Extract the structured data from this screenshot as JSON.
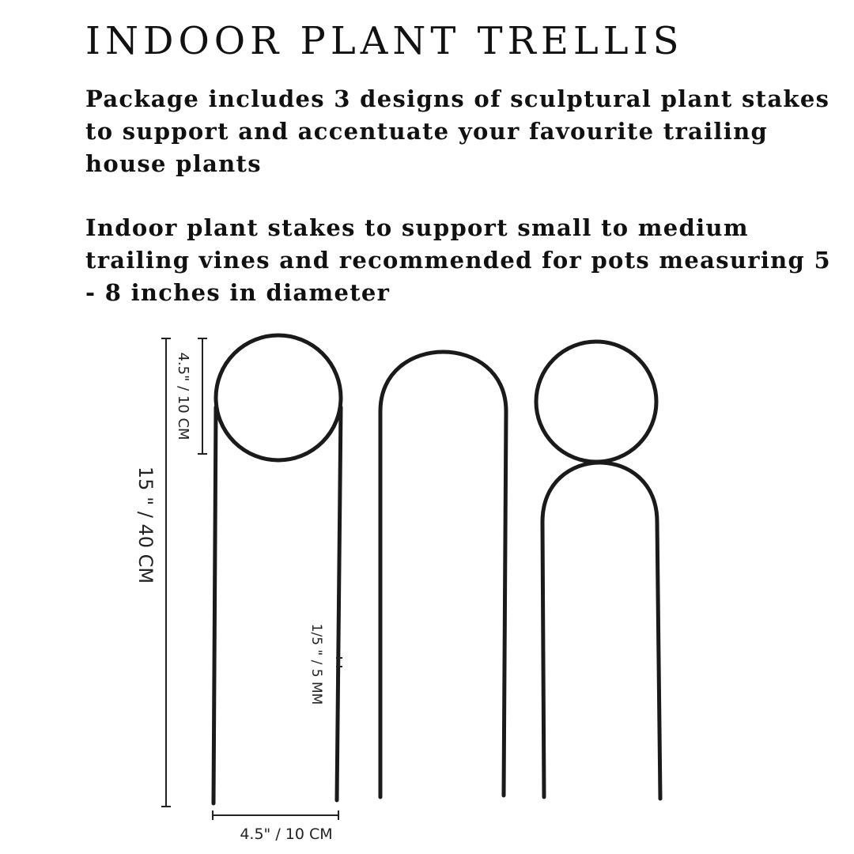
{
  "title": "INDOOR PLANT TRELLIS",
  "paragraphs": [
    "Package includes 3 designs of sculptural plant stakes to support and accentuate your favourite trailing house plants",
    "Indoor plant stakes to support small to medium trailing vines and recommended for pots measuring 5 - 8 inches in diameter"
  ],
  "dimensions": {
    "total_height": "15 \" / 40 CM",
    "loop_height": "4.5\" / 10 CM",
    "wire_thickness": "1/5 \" / 5 MM",
    "width": "4.5\" / 10 CM"
  },
  "colors": {
    "wire": "#1a1a1a",
    "text": "#111111",
    "background": "#ffffff"
  }
}
